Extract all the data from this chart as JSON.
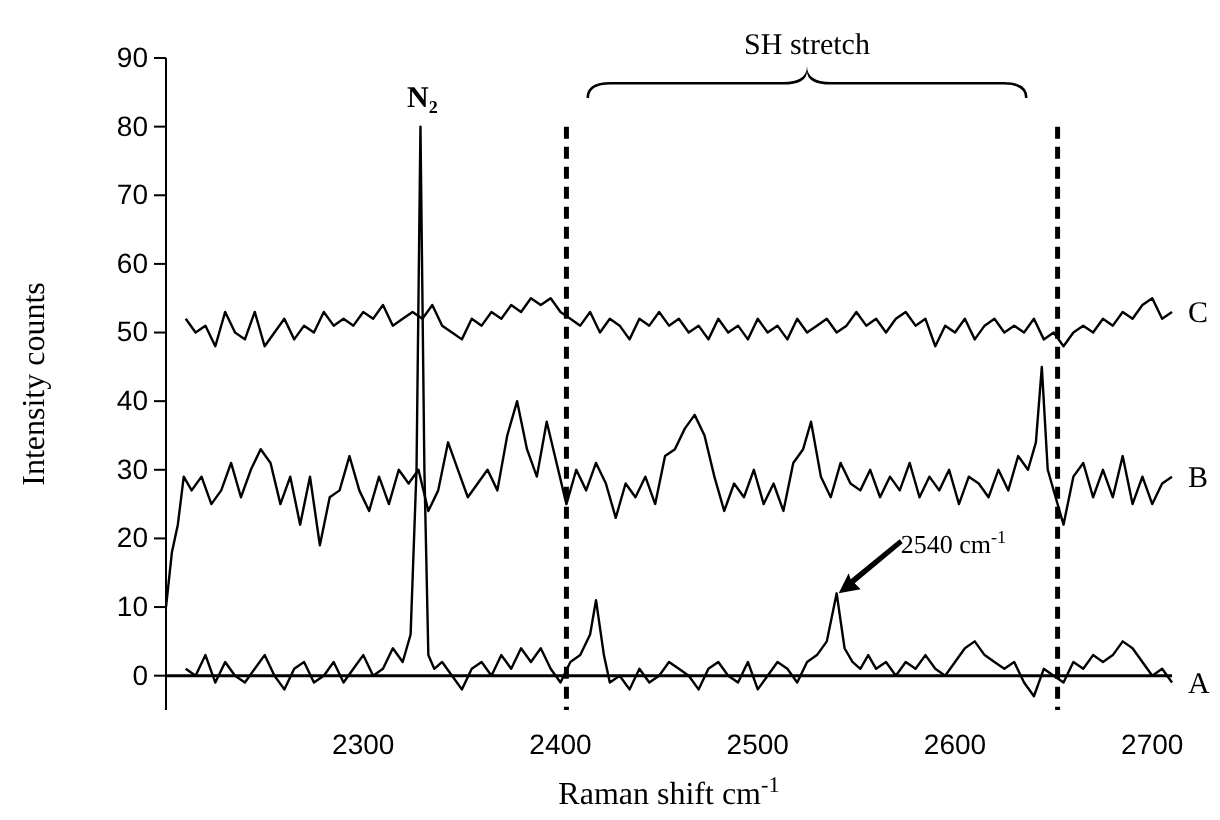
{
  "chart_data": {
    "type": "line",
    "xlabel": "Raman shift cm$^{-1}$",
    "ylabel": "Intensity counts",
    "xlim": [
      2200,
      2710
    ],
    "xticks": [
      2300,
      2400,
      2500,
      2600,
      2700
    ],
    "ylim": [
      -5,
      90
    ],
    "yticks": [
      0,
      10,
      20,
      30,
      40,
      50,
      60,
      70,
      80,
      90
    ],
    "grid": false,
    "legend": false,
    "marker": "none",
    "line_style": "solid",
    "ref_lines": [
      {
        "axis": "x",
        "value": 2403,
        "line_style": "dashed"
      },
      {
        "axis": "x",
        "value": 2652,
        "line_style": "dashed"
      }
    ],
    "annotations": [
      {
        "text": "N₂",
        "x": 2330,
        "y": 80
      },
      "SH stretch",
      {
        "text": "2540 cm$^{-1}$",
        "x": 2540,
        "y": 12
      }
    ],
    "series": [
      {
        "name": "A",
        "color": "#000000",
        "x": [
          2210,
          2215,
          2220,
          2225,
          2230,
          2235,
          2240,
          2245,
          2250,
          2255,
          2260,
          2265,
          2270,
          2275,
          2280,
          2285,
          2290,
          2295,
          2300,
          2305,
          2310,
          2315,
          2320,
          2324,
          2327,
          2329,
          2331,
          2333,
          2336,
          2340,
          2345,
          2350,
          2355,
          2360,
          2365,
          2370,
          2375,
          2380,
          2385,
          2390,
          2395,
          2400,
          2405,
          2410,
          2415,
          2418,
          2422,
          2425,
          2430,
          2435,
          2440,
          2445,
          2450,
          2455,
          2460,
          2465,
          2470,
          2475,
          2480,
          2485,
          2490,
          2495,
          2500,
          2505,
          2510,
          2515,
          2520,
          2525,
          2530,
          2535,
          2540,
          2544,
          2548,
          2552,
          2556,
          2560,
          2565,
          2570,
          2575,
          2580,
          2585,
          2590,
          2595,
          2600,
          2605,
          2610,
          2615,
          2620,
          2625,
          2630,
          2635,
          2640,
          2645,
          2650,
          2655,
          2660,
          2665,
          2670,
          2675,
          2680,
          2685,
          2690,
          2695,
          2700,
          2705,
          2710
        ],
        "values": [
          1,
          0,
          3,
          -1,
          2,
          0,
          -1,
          1,
          3,
          0,
          -2,
          1,
          2,
          -1,
          0,
          2,
          -1,
          1,
          3,
          0,
          1,
          4,
          2,
          6,
          30,
          80,
          30,
          3,
          1,
          2,
          0,
          -2,
          1,
          2,
          0,
          3,
          1,
          4,
          2,
          4,
          1,
          -1,
          2,
          3,
          6,
          11,
          3,
          -1,
          0,
          -2,
          1,
          -1,
          0,
          2,
          1,
          0,
          -2,
          1,
          2,
          0,
          -1,
          2,
          -2,
          0,
          2,
          1,
          -1,
          2,
          3,
          5,
          12,
          4,
          2,
          1,
          3,
          1,
          2,
          0,
          2,
          1,
          3,
          1,
          0,
          2,
          4,
          5,
          3,
          2,
          1,
          2,
          -1,
          -3,
          1,
          0,
          -1,
          2,
          1,
          3,
          2,
          3,
          5,
          4,
          2,
          0,
          1,
          -1
        ]
      },
      {
        "name": "B",
        "color": "#000000",
        "x": [
          2200,
          2203,
          2206,
          2209,
          2213,
          2218,
          2223,
          2228,
          2233,
          2238,
          2243,
          2248,
          2253,
          2258,
          2263,
          2268,
          2273,
          2278,
          2283,
          2288,
          2293,
          2298,
          2303,
          2308,
          2313,
          2318,
          2323,
          2328,
          2333,
          2338,
          2343,
          2348,
          2353,
          2358,
          2363,
          2368,
          2373,
          2378,
          2383,
          2388,
          2393,
          2398,
          2403,
          2408,
          2413,
          2418,
          2423,
          2428,
          2433,
          2438,
          2443,
          2448,
          2453,
          2458,
          2463,
          2468,
          2473,
          2478,
          2483,
          2488,
          2493,
          2498,
          2503,
          2508,
          2513,
          2518,
          2523,
          2527,
          2532,
          2537,
          2542,
          2547,
          2552,
          2557,
          2562,
          2567,
          2572,
          2577,
          2582,
          2587,
          2592,
          2597,
          2602,
          2607,
          2612,
          2617,
          2622,
          2627,
          2632,
          2637,
          2641,
          2644,
          2647,
          2651,
          2655,
          2660,
          2665,
          2670,
          2675,
          2680,
          2685,
          2690,
          2695,
          2700,
          2705,
          2710
        ],
        "values": [
          10,
          18,
          22,
          29,
          27,
          29,
          25,
          27,
          31,
          26,
          30,
          33,
          31,
          25,
          29,
          22,
          29,
          19,
          26,
          27,
          32,
          27,
          24,
          29,
          25,
          30,
          28,
          30,
          24,
          27,
          34,
          30,
          26,
          28,
          30,
          27,
          35,
          40,
          33,
          29,
          37,
          31,
          25,
          30,
          27,
          31,
          28,
          23,
          28,
          26,
          29,
          25,
          32,
          33,
          36,
          38,
          35,
          29,
          24,
          28,
          26,
          30,
          25,
          28,
          24,
          31,
          33,
          37,
          29,
          26,
          31,
          28,
          27,
          30,
          26,
          29,
          27,
          31,
          26,
          29,
          27,
          30,
          25,
          29,
          28,
          26,
          30,
          27,
          32,
          30,
          34,
          45,
          30,
          26,
          22,
          29,
          31,
          26,
          30,
          26,
          32,
          25,
          29,
          25,
          28,
          29
        ]
      },
      {
        "name": "C",
        "color": "#000000",
        "x": [
          2210,
          2215,
          2220,
          2225,
          2230,
          2235,
          2240,
          2245,
          2250,
          2255,
          2260,
          2265,
          2270,
          2275,
          2280,
          2285,
          2290,
          2295,
          2300,
          2305,
          2310,
          2315,
          2320,
          2325,
          2330,
          2335,
          2340,
          2345,
          2350,
          2355,
          2360,
          2365,
          2370,
          2375,
          2380,
          2385,
          2390,
          2395,
          2400,
          2405,
          2410,
          2415,
          2420,
          2425,
          2430,
          2435,
          2440,
          2445,
          2450,
          2455,
          2460,
          2465,
          2470,
          2475,
          2480,
          2485,
          2490,
          2495,
          2500,
          2505,
          2510,
          2515,
          2520,
          2525,
          2530,
          2535,
          2540,
          2545,
          2550,
          2555,
          2560,
          2565,
          2570,
          2575,
          2580,
          2585,
          2590,
          2595,
          2600,
          2605,
          2610,
          2615,
          2620,
          2625,
          2630,
          2635,
          2640,
          2645,
          2650,
          2655,
          2660,
          2665,
          2670,
          2675,
          2680,
          2685,
          2690,
          2695,
          2700,
          2705,
          2710
        ],
        "values": [
          52,
          50,
          51,
          48,
          53,
          50,
          49,
          53,
          48,
          50,
          52,
          49,
          51,
          50,
          53,
          51,
          52,
          51,
          53,
          52,
          54,
          51,
          52,
          53,
          52,
          54,
          51,
          50,
          49,
          52,
          51,
          53,
          52,
          54,
          53,
          55,
          54,
          55,
          53,
          52,
          51,
          53,
          50,
          52,
          51,
          49,
          52,
          51,
          53,
          51,
          52,
          50,
          51,
          49,
          52,
          50,
          51,
          49,
          52,
          50,
          51,
          49,
          52,
          50,
          51,
          52,
          50,
          51,
          53,
          51,
          52,
          50,
          52,
          53,
          51,
          52,
          48,
          51,
          50,
          52,
          49,
          51,
          52,
          50,
          51,
          50,
          52,
          49,
          50,
          48,
          50,
          51,
          50,
          52,
          51,
          53,
          52,
          54,
          55,
          52,
          53
        ]
      }
    ]
  }
}
